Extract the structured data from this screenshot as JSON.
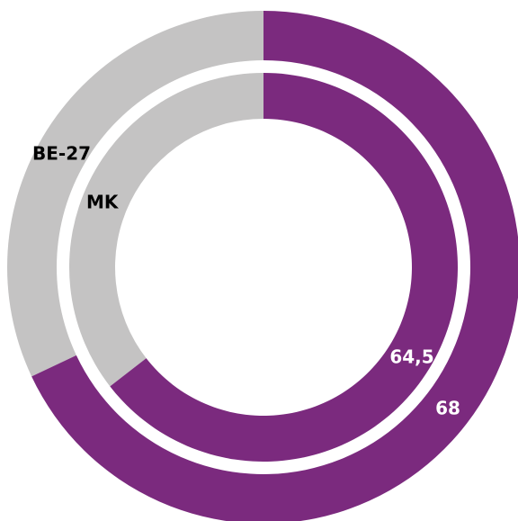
{
  "chart_data": {
    "type": "donut",
    "ylim": [
      0,
      100
    ],
    "rest_color": "#c4c3c3",
    "series": [
      {
        "name": "BE-27",
        "color": "#7b2a7e",
        "values": [
          68
        ],
        "value_labels": [
          "68"
        ]
      },
      {
        "name": "MK",
        "color": "#7b2a7e",
        "values": [
          64.5
        ],
        "value_labels": [
          "64,5"
        ]
      }
    ]
  }
}
